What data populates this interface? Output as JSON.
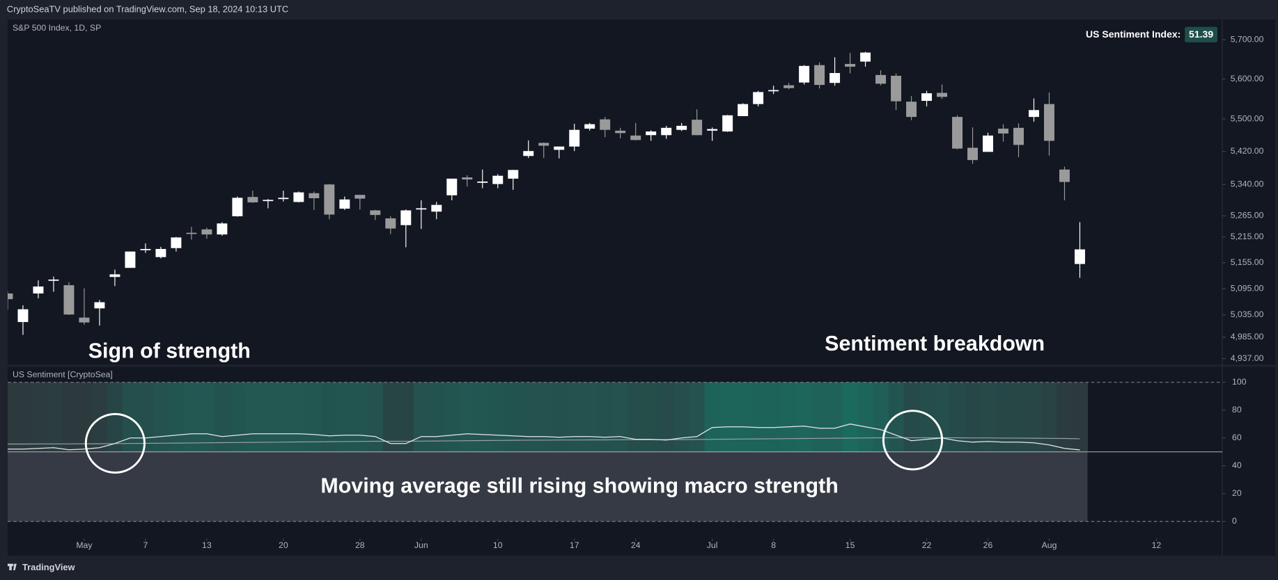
{
  "header": {
    "publisher": "CryptoSeaTV published on TradingView.com, Sep 18, 2024 10:13 UTC"
  },
  "footer": {
    "brand": "TradingView"
  },
  "annotations": [
    "Sign of strength",
    "Sentiment breakdown",
    "Moving average still rising showing macro strength"
  ],
  "chart_data": [
    {
      "type": "candlestick",
      "title": "S&P 500 Index, 1D, SP",
      "log": true,
      "up_color": "#ffffff",
      "down_color": "#9a9a9a",
      "xlim": [
        0,
        79.3
      ],
      "ylim": [
        4924,
        5752
      ],
      "yticks": [
        {
          "value": 5700,
          "label": "5,700.00"
        },
        {
          "value": 5600,
          "label": "5,600.00"
        },
        {
          "value": 5500,
          "label": "5,500.00"
        },
        {
          "value": 5420,
          "label": "5,420.00"
        },
        {
          "value": 5340,
          "label": "5,340.00"
        },
        {
          "value": 5265,
          "label": "5,265.00"
        },
        {
          "value": 5215,
          "label": "5,215.00"
        },
        {
          "value": 5155,
          "label": "5,155.00"
        },
        {
          "value": 5095,
          "label": "5,095.00"
        },
        {
          "value": 5035,
          "label": "5,035.00"
        },
        {
          "value": 4985,
          "label": "4,985.00"
        },
        {
          "value": 4937,
          "label": "4,937.00"
        }
      ],
      "xticks": [
        {
          "value": 5,
          "label": "May"
        },
        {
          "value": 9,
          "label": "7"
        },
        {
          "value": 13,
          "label": "13"
        },
        {
          "value": 18,
          "label": "20"
        },
        {
          "value": 23,
          "label": "28"
        },
        {
          "value": 27,
          "label": "Jun"
        },
        {
          "value": 32,
          "label": "10"
        },
        {
          "value": 37,
          "label": "17"
        },
        {
          "value": 41,
          "label": "24"
        },
        {
          "value": 46,
          "label": "Jul"
        },
        {
          "value": 50,
          "label": "8"
        },
        {
          "value": 55,
          "label": "15"
        },
        {
          "value": 60,
          "label": "22"
        },
        {
          "value": 64,
          "label": "26"
        },
        {
          "value": 68,
          "label": "Aug"
        },
        {
          "value": 75,
          "label": "12"
        }
      ],
      "open": [
        5084,
        5019,
        5084,
        5114,
        5103,
        5029,
        5050,
        5122,
        5143,
        5187,
        5168,
        5189,
        5225,
        5233,
        5221,
        5264,
        5310,
        5303,
        5305,
        5298,
        5319,
        5340,
        5282,
        5315,
        5278,
        5259,
        5243,
        5283,
        5275,
        5314,
        5357,
        5344,
        5341,
        5354,
        5409,
        5441,
        5424,
        5432,
        5476,
        5499,
        5471,
        5459,
        5460,
        5460,
        5473,
        5498,
        5471,
        5469,
        5507,
        5537,
        5572,
        5584,
        5591,
        5635,
        5590,
        5638,
        5644,
        5610,
        5608,
        5543,
        5545,
        5565,
        5505,
        5429,
        5419,
        5476,
        5478,
        5505,
        5537,
        5376,
        5152
      ],
      "high": [
        5089,
        5057,
        5114,
        5123,
        5110,
        5096,
        5069,
        5139,
        5181,
        5200,
        5192,
        5215,
        5239,
        5237,
        5250,
        5311,
        5325,
        5305,
        5325,
        5323,
        5323,
        5341,
        5311,
        5315,
        5279,
        5264,
        5280,
        5302,
        5298,
        5354,
        5362,
        5376,
        5365,
        5375,
        5447,
        5442,
        5432,
        5488,
        5490,
        5505,
        5478,
        5490,
        5472,
        5483,
        5490,
        5524,
        5479,
        5510,
        5539,
        5570,
        5583,
        5590,
        5635,
        5642,
        5655,
        5666,
        5669,
        5622,
        5614,
        5557,
        5570,
        5586,
        5509,
        5479,
        5466,
        5487,
        5489,
        5551,
        5566,
        5383,
        5250
      ],
      "low": [
        5047,
        4990,
        5073,
        5088,
        5035,
        5013,
        5011,
        5101,
        5143,
        5178,
        5165,
        5181,
        5209,
        5211,
        5218,
        5263,
        5296,
        5283,
        5299,
        5297,
        5279,
        5257,
        5279,
        5280,
        5255,
        5222,
        5191,
        5234,
        5257,
        5302,
        5335,
        5331,
        5331,
        5327,
        5404,
        5404,
        5403,
        5421,
        5471,
        5455,
        5452,
        5447,
        5446,
        5451,
        5470,
        5460,
        5446,
        5468,
        5507,
        5531,
        5562,
        5574,
        5586,
        5576,
        5583,
        5614,
        5631,
        5584,
        5522,
        5497,
        5531,
        5550,
        5425,
        5390,
        5419,
        5444,
        5406,
        5493,
        5410,
        5302,
        5120
      ],
      "close": [
        5071,
        5048,
        5100,
        5116,
        5036,
        5018,
        5064,
        5128,
        5181,
        5187,
        5187,
        5214,
        5223,
        5221,
        5247,
        5308,
        5297,
        5303,
        5308,
        5321,
        5307,
        5268,
        5304,
        5306,
        5267,
        5235,
        5278,
        5283,
        5291,
        5354,
        5352,
        5347,
        5361,
        5375,
        5421,
        5434,
        5432,
        5473,
        5487,
        5473,
        5465,
        5448,
        5469,
        5478,
        5483,
        5460,
        5475,
        5509,
        5537,
        5567,
        5572,
        5577,
        5633,
        5585,
        5615,
        5631,
        5667,
        5588,
        5544,
        5505,
        5564,
        5555,
        5427,
        5399,
        5459,
        5464,
        5436,
        5522,
        5446,
        5346,
        5186
      ]
    },
    {
      "type": "line",
      "title": "US Sentiment [CryptoSea]",
      "readout": "US Sentiment Index:",
      "ylim": [
        -24,
        110.5
      ],
      "yticks": [
        100,
        80,
        60,
        40,
        20,
        0
      ],
      "band": [
        0,
        100
      ],
      "midline": 50,
      "band_low_color": "#2c3a3e",
      "band_high_color": "#1b6a5e",
      "below_color": "#363a45",
      "series": [
        {
          "color": "#e6e6e6",
          "values": [
            52,
            52,
            52.5,
            53,
            51.5,
            52,
            53,
            56,
            60,
            60,
            61,
            62,
            63,
            63,
            61,
            62,
            63,
            63,
            63,
            63,
            62.5,
            61.5,
            62,
            62,
            61,
            56,
            56,
            61,
            61,
            62,
            63,
            62.5,
            62,
            61.5,
            61,
            61,
            60.5,
            61,
            61,
            60.5,
            61,
            59,
            59,
            58.5,
            60,
            61,
            67.5,
            68,
            68,
            67.5,
            67.5,
            68,
            68.5,
            67,
            67,
            70,
            68,
            66,
            62,
            58,
            59,
            60,
            58,
            57,
            57.5,
            57,
            57,
            56.5,
            55,
            52.5,
            51.39
          ]
        },
        {
          "color": "#9aa0a8",
          "values": [
            55.6,
            55.6,
            55.7,
            55.7,
            55.7,
            55.8,
            55.8,
            55.9,
            56,
            56.1,
            56.2,
            56.3,
            56.4,
            56.5,
            56.6,
            56.7,
            56.8,
            56.9,
            57,
            57.1,
            57.2,
            57.3,
            57.4,
            57.5,
            57.6,
            57.6,
            57.6,
            57.7,
            57.8,
            57.9,
            58,
            58.1,
            58.2,
            58.3,
            58.4,
            58.4,
            58.5,
            58.5,
            58.6,
            58.6,
            58.7,
            58.7,
            58.7,
            58.8,
            58.8,
            58.9,
            59,
            59.1,
            59.2,
            59.3,
            59.4,
            59.5,
            59.6,
            59.7,
            59.8,
            59.9,
            60,
            60.1,
            60.1,
            60.1,
            60.1,
            60.1,
            60.1,
            60,
            60,
            59.9,
            59.9,
            59.8,
            59.7,
            59.6,
            59.4
          ]
        }
      ]
    }
  ]
}
